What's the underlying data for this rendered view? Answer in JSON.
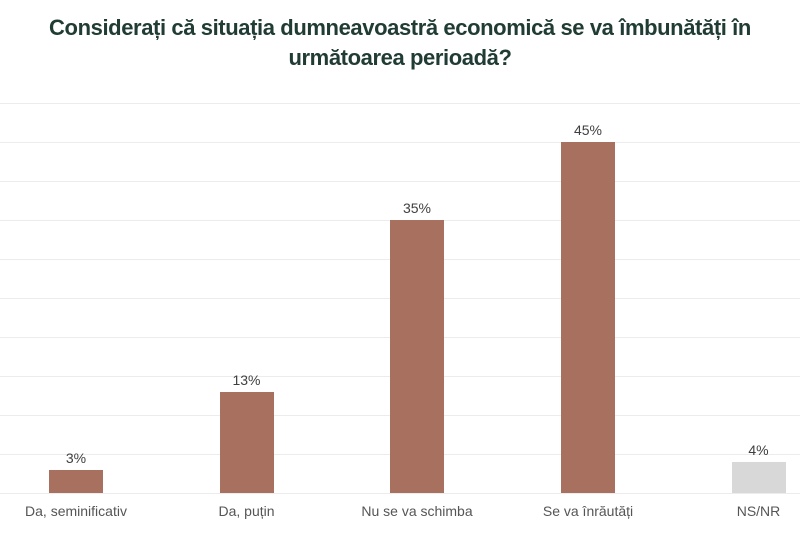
{
  "title": {
    "line1": "Considerați că situația dumneavoastră economică se va îmbunătăți în",
    "line2": "următoarea perioadă?"
  },
  "chart_data": {
    "type": "bar",
    "title": "Considerați că situația dumneavoastră economică se va îmbunătăți în următoarea perioadă?",
    "categories": [
      "Da, seminificativ",
      "Da, puțin",
      "Nu se va schimba",
      "Se va înrăutăți",
      "NS/NR"
    ],
    "values": [
      3,
      13,
      35,
      45,
      4
    ],
    "value_labels": [
      "3%",
      "13%",
      "35%",
      "45%",
      "4%"
    ],
    "bar_colors": [
      "#a8715f",
      "#a8715f",
      "#a8715f",
      "#a8715f",
      "#d8d8d8"
    ],
    "xlabel": "",
    "ylabel": "",
    "ylim": [
      0,
      51
    ],
    "gridline_interval_percent": 5,
    "grid": "horizontal",
    "legend": "none"
  },
  "colors": {
    "background": "#ffffff",
    "title_text": "#213c34",
    "bar_primary": "#a8715f",
    "bar_nsnr": "#d8d8d8",
    "gridline": "#ececec",
    "value_label_text": "#3f3f3f",
    "axis_label_text": "#555555"
  }
}
